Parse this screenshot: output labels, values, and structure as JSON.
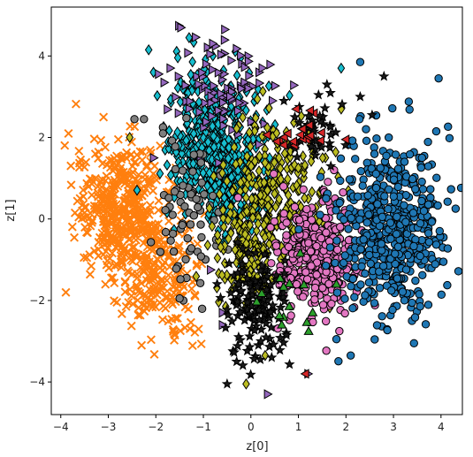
{
  "chart_data": {
    "type": "scatter",
    "title": "",
    "xlabel": "z[0]",
    "ylabel": "z[1]",
    "xlim": [
      -4.2,
      4.45
    ],
    "ylim": [
      -4.8,
      5.2
    ],
    "xticks": [
      -4,
      -3,
      -2,
      -1,
      0,
      1,
      2,
      3,
      4
    ],
    "yticks": [
      -4,
      -2,
      0,
      2,
      4
    ],
    "grid": false,
    "legend": "none",
    "series": [
      {
        "marker": "x",
        "color": "#ff7f0e",
        "clusters": [
          {
            "mean": [
              -2.7,
              0.2
            ],
            "std": [
              0.5,
              0.85
            ],
            "n": 450
          },
          {
            "mean": [
              -1.9,
              -1.6
            ],
            "std": [
              0.4,
              0.65
            ],
            "n": 180
          }
        ],
        "points": [
          [
            -3.1,
            2.5
          ],
          [
            -3.55,
            0.2
          ],
          [
            -3.7,
            0.15
          ],
          [
            -2.3,
            -3.1
          ],
          [
            -1.1,
            -2.7
          ],
          [
            -1.6,
            -2.85
          ]
        ]
      },
      {
        "marker": "diamond",
        "color": "#17becf",
        "clusters": [
          {
            "mean": [
              -0.75,
              1.7
            ],
            "std": [
              0.5,
              0.9
            ],
            "n": 520
          },
          {
            "mean": [
              -0.3,
              0.6
            ],
            "std": [
              0.35,
              0.6
            ],
            "n": 120
          }
        ],
        "points": [
          [
            -2.15,
            4.15
          ],
          [
            -1.3,
            4.45
          ],
          [
            1.9,
            3.7
          ],
          [
            -0.8,
            4.0
          ],
          [
            -2.05,
            3.6
          ]
        ]
      },
      {
        "marker": "triangle-right",
        "color": "#9467bd",
        "clusters": [
          {
            "mean": [
              -0.6,
              3.2
            ],
            "std": [
              0.6,
              0.7
            ],
            "n": 90
          }
        ],
        "points": [
          [
            -0.55,
            4.65
          ],
          [
            -1.7,
            3.7
          ],
          [
            0.45,
            2.9
          ],
          [
            -2.05,
            1.5
          ],
          [
            -0.6,
            -2.3
          ],
          [
            -0.6,
            -2.6
          ],
          [
            0.35,
            -4.3
          ],
          [
            1.2,
            -3.8
          ],
          [
            -0.85,
            -1.25
          ]
        ]
      },
      {
        "marker": "circle",
        "color": "#7f7f7f",
        "clusters": [
          {
            "mean": [
              -1.3,
              0.0
            ],
            "std": [
              0.35,
              0.9
            ],
            "n": 70
          }
        ],
        "points": [
          [
            -2.45,
            2.45
          ],
          [
            -2.25,
            2.45
          ],
          [
            -1.85,
            2.25
          ],
          [
            -1.85,
            2.1
          ],
          [
            -1.5,
            -1.95
          ]
        ]
      },
      {
        "marker": "diamond",
        "color": "#bcbd22",
        "clusters": [
          {
            "mean": [
              0.5,
              0.4
            ],
            "std": [
              0.55,
              0.95
            ],
            "n": 330
          },
          {
            "mean": [
              -0.2,
              -1.0
            ],
            "std": [
              0.35,
              0.55
            ],
            "n": 70
          }
        ],
        "points": [
          [
            1.9,
            2.7
          ],
          [
            2.05,
            0.7
          ],
          [
            0.3,
            -3.35
          ],
          [
            -0.1,
            -4.05
          ],
          [
            -2.55,
            2.0
          ]
        ]
      },
      {
        "marker": "circle",
        "color": "#e377c2",
        "clusters": [
          {
            "mean": [
              1.35,
              -0.9
            ],
            "std": [
              0.45,
              0.7
            ],
            "n": 350
          }
        ],
        "points": [
          [
            2.2,
            -0.1
          ],
          [
            1.75,
            1.2
          ],
          [
            2.35,
            -0.5
          ]
        ]
      },
      {
        "marker": "circle",
        "color": "#1f77b4",
        "clusters": [
          {
            "mean": [
              2.95,
              -0.3
            ],
            "std": [
              0.55,
              1.05
            ],
            "n": 520
          }
        ],
        "points": [
          [
            2.3,
            3.85
          ],
          [
            3.95,
            3.45
          ],
          [
            3.6,
            1.5
          ],
          [
            3.9,
            2.15
          ],
          [
            2.85,
            1.55
          ],
          [
            2.1,
            -3.35
          ],
          [
            4.05,
            -1.05
          ],
          [
            1.8,
            -2.95
          ]
        ]
      },
      {
        "marker": "star",
        "color": "#1a1a1a",
        "clusters": [
          {
            "mean": [
              0.1,
              -2.0
            ],
            "std": [
              0.3,
              0.65
            ],
            "n": 150
          },
          {
            "mean": [
              1.4,
              2.1
            ],
            "std": [
              0.35,
              0.4
            ],
            "n": 40
          }
        ],
        "points": [
          [
            2.3,
            3.0
          ],
          [
            1.6,
            3.3
          ],
          [
            2.8,
            3.5
          ],
          [
            2.55,
            2.55
          ],
          [
            -0.5,
            -4.05
          ],
          [
            0.75,
            -2.85
          ],
          [
            -0.3,
            -3.5
          ]
        ]
      },
      {
        "marker": "triangle-left",
        "color": "#d62728",
        "clusters": [
          {
            "mean": [
              1.1,
              2.2
            ],
            "std": [
              0.3,
              0.35
            ],
            "n": 20
          }
        ],
        "points": [
          [
            1.15,
            -3.8
          ],
          [
            0.55,
            1.9
          ],
          [
            2.0,
            1.95
          ]
        ]
      },
      {
        "marker": "triangle-up",
        "color": "#2ca02c",
        "clusters": [
          {
            "mean": [
              0.8,
              -1.9
            ],
            "std": [
              0.35,
              0.45
            ],
            "n": 12
          }
        ],
        "points": [
          [
            0.65,
            -2.6
          ],
          [
            1.3,
            -2.3
          ],
          [
            1.8,
            -1.6
          ]
        ]
      }
    ]
  }
}
